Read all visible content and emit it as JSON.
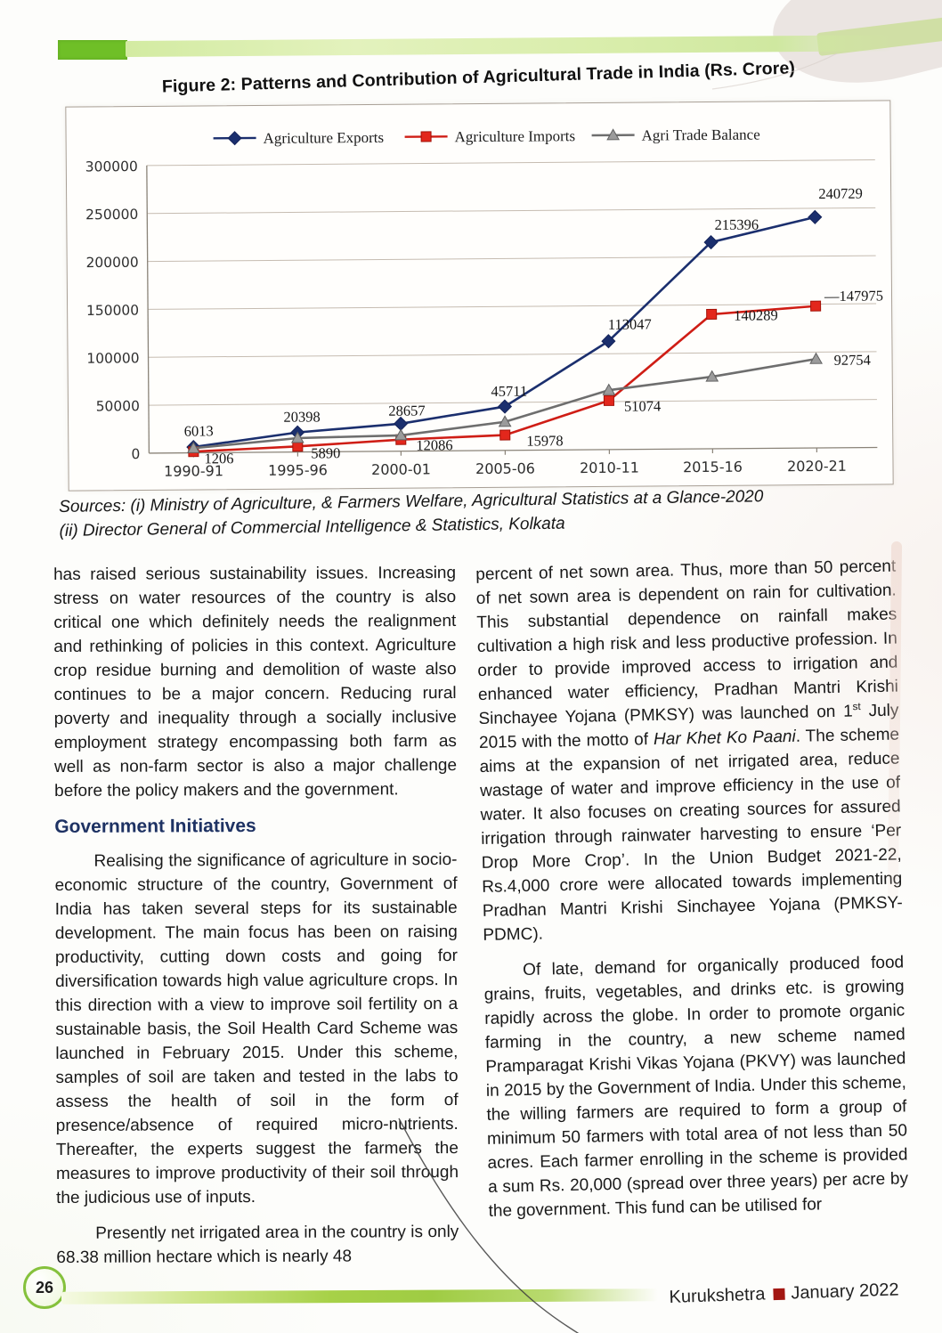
{
  "figure": {
    "title": "Figure 2: Patterns and Contribution of Agricultural Trade in India (Rs. Crore)"
  },
  "chart_data": {
    "type": "line",
    "title": "Figure 2: Patterns and Contribution of Agricultural Trade in India (Rs. Crore)",
    "categories": [
      "1990-91",
      "1995-96",
      "2000-01",
      "2005-06",
      "2010-11",
      "2015-16",
      "2020-21"
    ],
    "series": [
      {
        "name": "Agriculture Exports",
        "color": "#1b2f6e",
        "marker": "diamond",
        "values": [
          6013,
          20398,
          28657,
          45711,
          113047,
          215396,
          240729
        ],
        "labels": [
          6013,
          20398,
          28657,
          45711,
          113047,
          215396,
          240729
        ]
      },
      {
        "name": "Agriculture Imports",
        "color": "#cf1d15",
        "marker": "square",
        "values": [
          1206,
          5890,
          12086,
          15978,
          51074,
          140289,
          147975
        ],
        "labels": [
          1206,
          5890,
          12086,
          15978,
          51074,
          140289,
          147975
        ]
      },
      {
        "name": "Agri Trade Balance",
        "color": "#6e6e6e",
        "marker": "triangle",
        "values": [
          4807,
          14508,
          16571,
          29733,
          61973,
          75107,
          92754
        ],
        "labels": [
          null,
          null,
          null,
          null,
          null,
          null,
          92754
        ]
      }
    ],
    "ylim": [
      0,
      300000
    ],
    "ytick_step": 50000,
    "yticks": [
      "0",
      "50000",
      "100000",
      "150000",
      "200000",
      "250000",
      "300000"
    ],
    "grid": true,
    "legend_position": "top"
  },
  "sources": {
    "line1": "Sources: (i) Ministry of Agriculture, & Farmers Welfare, Agricultural Statistics at a Glance-2020",
    "line2": "(ii) Director General of Commercial Intelligence & Statistics, Kolkata"
  },
  "left_column": {
    "para1": "has raised serious sustainability issues. Increasing stress on water resources of the country is also critical one which definitely needs the realignment and rethinking of policies in this context. Agriculture crop residue burning and demolition of waste also continues to be a major concern. Reducing rural poverty and inequality through a socially inclusive employment strategy encompassing both farm as well as non-farm sector is also a major challenge before the policy makers and the government.",
    "heading": "Government Initiatives",
    "para2": "Realising the significance of agriculture in socio-economic structure of the country, Government of India has taken several steps for its sustainable development. The main focus has been on raising productivity, cutting down costs and going for diversification towards high value agriculture crops. In this direction with a view to improve soil fertility on a sustainable basis, the Soil Health Card Scheme was launched in February 2015. Under this scheme, samples of soil are taken and tested in the labs to assess the health of soil in the form of presence/absence of required micro-nutrients. Thereafter, the experts suggest the farmers the measures to improve productivity of their soil through the judicious use of inputs.",
    "para3": "Presently net irrigated area in the country is only 68.38 million hectare which is nearly 48"
  },
  "right_column": {
    "para1_segments": [
      {
        "t": "percent of net sown area. Thus, more than 50 percent of net sown area is dependent on rain for cultivation. This substantial dependence on rainfall makes cultivation a high risk and less productive profession. In order to provide improved access to irrigation and enhanced water efficiency, Pradhan Mantri Krishi Sinchayee Yojana (PMKSY) was launched on 1"
      },
      {
        "t": "st",
        "s": "sup"
      },
      {
        "t": " July 2015 with the motto of "
      },
      {
        "t": "Har Khet Ko Paani",
        "s": "i"
      },
      {
        "t": ". The scheme aims at the expansion of net irrigated area, reduce wastage of water and improve efficiency in the use of water. It also focuses on creating sources for assured irrigation through rainwater harvesting to ensure ‘Per Drop More Crop’. In the Union Budget 2021-22, Rs.4,000 crore were allocated towards implementing Pradhan Mantri Krishi Sinchayee Yojana (PMKSY-PDMC)."
      }
    ],
    "para2": "Of late, demand for organically produced food grains, fruits, vegetables, and drinks etc. is growing rapidly across the globe. In order to promote organic farming in the country, a new scheme named Pramparagat Krishi Vikas Yojana (PKVY) was launched in 2015 by the Government of India. Under this scheme, the willing farmers are required to form a group of minimum 50 farmers with total area of not less than 50 acres. Each farmer enrolling in the scheme is provided a sum Rs. 20,000 (spread over three years) per acre by the government. This fund can be utilised for"
  },
  "footer": {
    "page_number": "26",
    "journal": "Kurukshetra",
    "issue": "January 2022"
  }
}
